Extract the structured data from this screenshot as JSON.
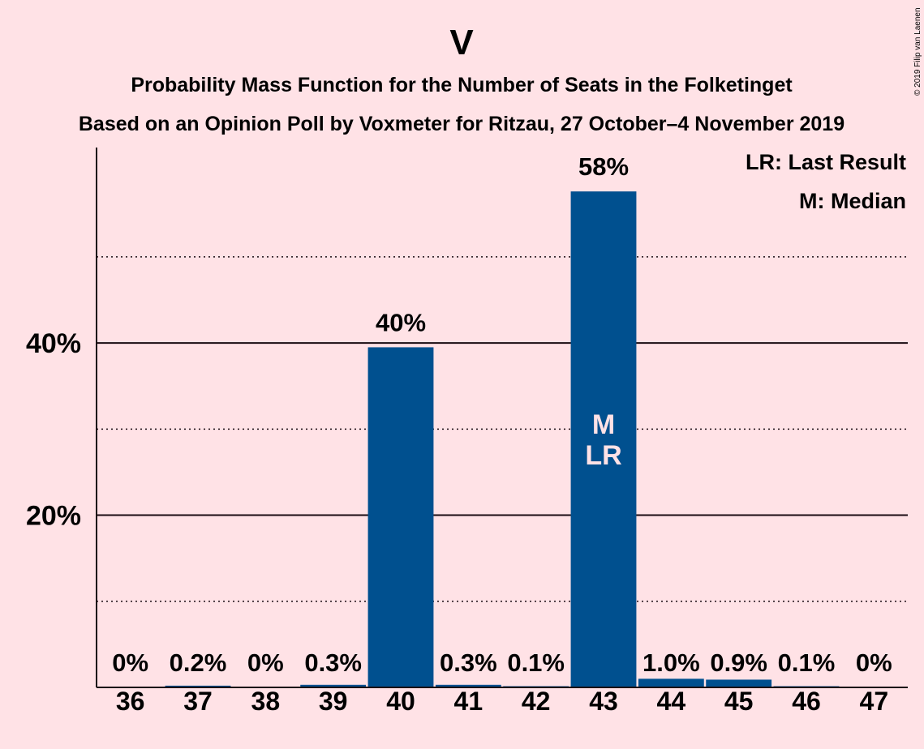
{
  "chart_data": {
    "type": "bar",
    "title": "V",
    "subtitle_line1": "Probability Mass Function for the Number of Seats in the Folketinget",
    "subtitle_line2": "Based on an Opinion Poll by Voxmeter for Ritzau, 27 October–4 November 2019",
    "copyright": "© 2019 Filip van Laenen",
    "categories": [
      "36",
      "37",
      "38",
      "39",
      "40",
      "41",
      "42",
      "43",
      "44",
      "45",
      "46",
      "47"
    ],
    "values": [
      0,
      0.2,
      0,
      0.3,
      39.5,
      0.3,
      0.1,
      57.6,
      1.0,
      0.9,
      0.1,
      0
    ],
    "value_labels": [
      "0%",
      "0.2%",
      "0%",
      "0.3%",
      "40%",
      "0.3%",
      "0.1%",
      "58%",
      "1.0%",
      "0.9%",
      "0.1%",
      "0%"
    ],
    "ylim": [
      0,
      62.7
    ],
    "yticks": [
      20,
      40
    ],
    "ytick_labels": [
      "20%",
      "40%"
    ],
    "minor_gridlines": [
      10,
      30,
      50
    ],
    "bar_color": "#00508F",
    "background_color": "#FFE2E6",
    "median_seat": "43",
    "last_result_seat": "43",
    "median_marker": "M",
    "last_result_marker": "LR",
    "legend": [
      "LR: Last Result",
      "M: Median"
    ],
    "legend_position": "top-right"
  }
}
